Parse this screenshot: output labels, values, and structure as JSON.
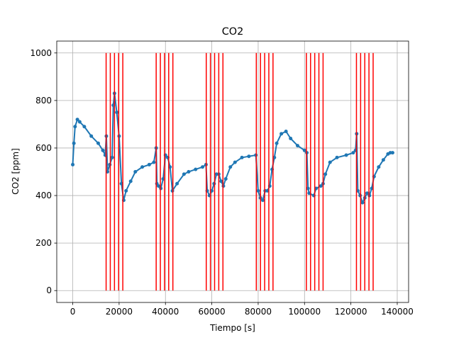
{
  "chart_data": {
    "type": "line",
    "title": "CO2",
    "xlabel": "Tiempo [s]",
    "ylabel": "CO2 [ppm]",
    "x": [
      0,
      500,
      1000,
      2000,
      3000,
      5000,
      8000,
      11000,
      13000,
      14000,
      14500,
      15000,
      16000,
      17000,
      17500,
      18000,
      19000,
      20000,
      21000,
      22000,
      23000,
      25000,
      27000,
      30000,
      33000,
      35000,
      36000,
      36300,
      37000,
      38000,
      39000,
      40000,
      41000,
      42000,
      43000,
      45000,
      48000,
      50000,
      53000,
      56000,
      57500,
      58000,
      59000,
      60000,
      61000,
      62000,
      63000,
      64000,
      65000,
      66000,
      68000,
      70000,
      73000,
      76000,
      79000,
      80000,
      81000,
      82000,
      83000,
      84000,
      85000,
      86000,
      87000,
      88000,
      90000,
      92000,
      94000,
      97000,
      100000,
      101000,
      101500,
      102000,
      104000,
      105000,
      107000,
      108000,
      109000,
      111000,
      114000,
      118000,
      121000,
      122000,
      122500,
      123000,
      124000,
      125000,
      126000,
      127000,
      128000,
      129000,
      130000,
      132000,
      134000,
      136000,
      137000,
      138000
    ],
    "values": [
      530,
      620,
      690,
      720,
      710,
      690,
      650,
      620,
      590,
      570,
      650,
      500,
      530,
      560,
      780,
      830,
      750,
      650,
      450,
      380,
      420,
      460,
      500,
      520,
      530,
      540,
      600,
      450,
      440,
      430,
      470,
      570,
      560,
      520,
      420,
      450,
      490,
      500,
      510,
      520,
      530,
      420,
      400,
      420,
      450,
      490,
      490,
      460,
      440,
      470,
      520,
      540,
      560,
      565,
      570,
      420,
      390,
      380,
      420,
      420,
      440,
      510,
      560,
      620,
      660,
      670,
      640,
      610,
      590,
      580,
      430,
      410,
      400,
      430,
      440,
      450,
      490,
      540,
      560,
      570,
      580,
      590,
      660,
      420,
      400,
      370,
      390,
      410,
      400,
      430,
      480,
      520,
      550,
      575,
      580,
      580
    ],
    "color": "#1f77b4",
    "vlines": [
      14400,
      16200,
      18000,
      19800,
      21600,
      36000,
      37800,
      39600,
      41400,
      43200,
      57600,
      59400,
      61200,
      63000,
      64800,
      79200,
      81000,
      82800,
      84600,
      86400,
      100800,
      102600,
      104400,
      106200,
      108000,
      122400,
      124200,
      126000,
      127800,
      129600
    ],
    "vline_range": [
      0,
      1000
    ],
    "vline_color": "#ff0000",
    "xlim": [
      -6900,
      144900
    ],
    "ylim": [
      -50,
      1050
    ],
    "xticks": [
      0,
      20000,
      40000,
      60000,
      80000,
      100000,
      120000,
      140000
    ],
    "yticks": [
      0,
      200,
      400,
      600,
      800,
      1000
    ],
    "grid": true
  }
}
